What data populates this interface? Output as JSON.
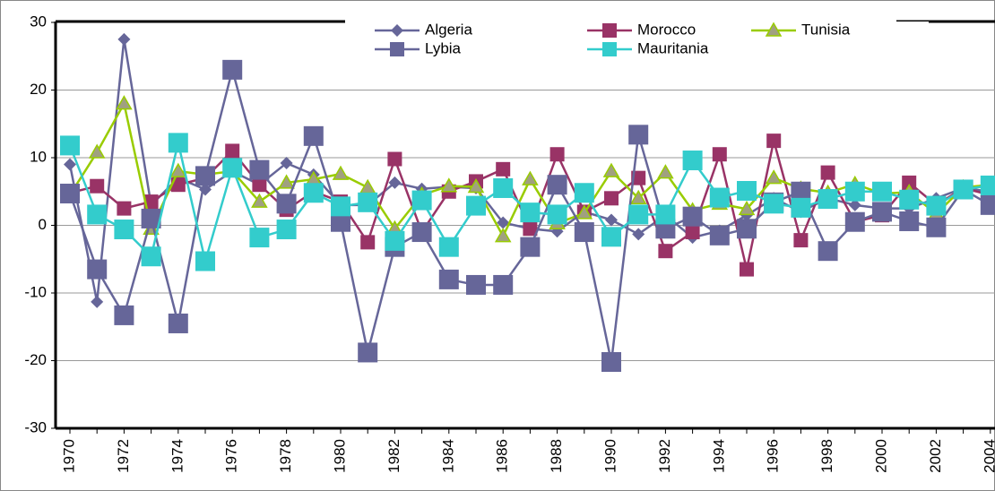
{
  "chart_data": {
    "type": "line",
    "categories": [
      "1970",
      null,
      "1972",
      null,
      "1974",
      null,
      "1976",
      null,
      "1978",
      null,
      "1980",
      null,
      "1982",
      null,
      "1984",
      null,
      "1986",
      null,
      "1988",
      null,
      "1990",
      null,
      "1992",
      null,
      "1994",
      null,
      "1996",
      null,
      "1998",
      null,
      "2000",
      null,
      "2002",
      null,
      "2004"
    ],
    "ylim": [
      -30,
      30
    ],
    "yticks": [
      -30,
      -20,
      -10,
      0,
      10,
      20,
      30
    ],
    "grid": true,
    "legend": "top",
    "series": [
      {
        "name": "Algeria",
        "color": "#666699",
        "marker": "diamond",
        "values": [
          9,
          -11.3,
          27.5,
          3,
          7,
          5.3,
          8,
          6,
          9.2,
          7.5,
          3,
          3,
          6.3,
          5.4,
          5.7,
          5.5,
          0.4,
          -0.5,
          -0.9,
          2,
          0.8,
          -1.3,
          1.5,
          -1.8,
          -0.8,
          1.5,
          4,
          2,
          4,
          3,
          2.5,
          2.5,
          4,
          5.5,
          5
        ]
      },
      {
        "name": "Morocco",
        "color": "#993366",
        "marker": "square",
        "values": [
          4.8,
          5.8,
          2.5,
          3.5,
          6,
          7,
          11,
          6,
          2.3,
          5,
          3.5,
          -2.5,
          9.8,
          -1,
          5,
          6.5,
          8.3,
          -0.5,
          10.5,
          2,
          4,
          7,
          -3.8,
          -1,
          10.5,
          -6.5,
          12.5,
          -2.2,
          7.8,
          0.5,
          1.5,
          6.3,
          3,
          5.5,
          4.5
        ]
      },
      {
        "name": "Tunisia",
        "color": "#99cc00",
        "marker": "triangle",
        "values": [
          4.5,
          10.8,
          18,
          -0.5,
          8,
          7.5,
          8,
          3.5,
          6.3,
          6.8,
          7.6,
          5.6,
          -0.5,
          4.5,
          5.8,
          5.7,
          -1.6,
          6.8,
          0.3,
          1.8,
          8,
          4,
          7.8,
          2.2,
          3.2,
          2.4,
          7,
          5.4,
          4.8,
          6.1,
          4.7,
          4.9,
          1.7,
          5.6,
          6
        ]
      },
      {
        "name": "Lybia",
        "color": "#666699",
        "marker": "bigsquare",
        "values": [
          4.7,
          -6.5,
          -13.3,
          1,
          -14.5,
          7.3,
          23,
          8.2,
          3.2,
          13.2,
          0.5,
          -18.8,
          -3.2,
          -1,
          -8,
          -8.8,
          -8.8,
          -3.2,
          6,
          -1,
          -20.2,
          13.4,
          -0.5,
          1.3,
          -1.5,
          -0.5,
          3.4,
          5,
          -3.8,
          0.5,
          2,
          0.6,
          -0.3,
          5.3,
          3
        ]
      },
      {
        "name": "Mauritania",
        "color": "#33cccc",
        "marker": "bigsquare",
        "values": [
          11.8,
          1.6,
          -0.6,
          -4.6,
          12.2,
          -5.3,
          8.5,
          -1.8,
          -0.6,
          4.8,
          2.8,
          3.4,
          -2.3,
          3.7,
          -3.2,
          2.9,
          5.5,
          1.9,
          1.6,
          4.8,
          -1.7,
          1.6,
          1.6,
          9.6,
          4.1,
          5.1,
          3.2,
          2.6,
          3.9,
          5,
          5,
          3.8,
          2.9,
          5.3,
          5.9
        ]
      }
    ]
  }
}
